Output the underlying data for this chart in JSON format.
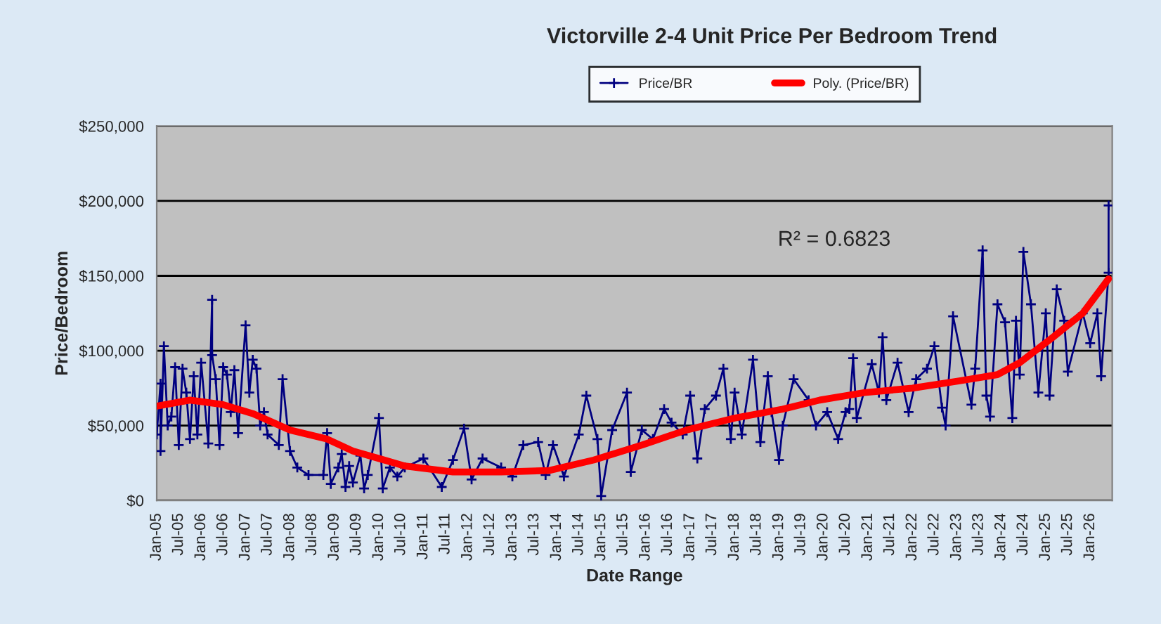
{
  "chart_data": {
    "type": "line",
    "title": "Victorville 2-4 Unit Price Per Bedroom Trend",
    "xlabel": "Date Range",
    "ylabel": "Price/Bedroom",
    "annotations": [
      "R² = 0.6823"
    ],
    "legend": "top",
    "grid": "y",
    "ylim": [
      0,
      250000
    ],
    "yticks": [
      {
        "value": 0,
        "label": "$0"
      },
      {
        "value": 50000,
        "label": "$50,000"
      },
      {
        "value": 100000,
        "label": "$100,000"
      },
      {
        "value": 150000,
        "label": "$150,000"
      },
      {
        "value": 200000,
        "label": "$200,000"
      },
      {
        "value": 250000,
        "label": "$250,000"
      }
    ],
    "xlim": [
      "2005-01",
      "2026-07"
    ],
    "xticks": [
      {
        "value": "2005-01",
        "label": "Jan-05"
      },
      {
        "value": "2005-07",
        "label": "Jul-05"
      },
      {
        "value": "2006-01",
        "label": "Jan-06"
      },
      {
        "value": "2006-07",
        "label": "Jul-06"
      },
      {
        "value": "2007-01",
        "label": "Jan-07"
      },
      {
        "value": "2007-07",
        "label": "Jul-07"
      },
      {
        "value": "2008-01",
        "label": "Jan-08"
      },
      {
        "value": "2008-07",
        "label": "Jul-08"
      },
      {
        "value": "2009-01",
        "label": "Jan-09"
      },
      {
        "value": "2009-07",
        "label": "Jul-09"
      },
      {
        "value": "2010-01",
        "label": "Jan-10"
      },
      {
        "value": "2010-07",
        "label": "Jul-10"
      },
      {
        "value": "2011-01",
        "label": "Jan-11"
      },
      {
        "value": "2011-07",
        "label": "Jul-11"
      },
      {
        "value": "2012-01",
        "label": "Jan-12"
      },
      {
        "value": "2012-07",
        "label": "Jul-12"
      },
      {
        "value": "2013-01",
        "label": "Jan-13"
      },
      {
        "value": "2013-07",
        "label": "Jul-13"
      },
      {
        "value": "2014-01",
        "label": "Jan-14"
      },
      {
        "value": "2014-07",
        "label": "Jul-14"
      },
      {
        "value": "2015-01",
        "label": "Jan-15"
      },
      {
        "value": "2015-07",
        "label": "Jul-15"
      },
      {
        "value": "2016-01",
        "label": "Jan-16"
      },
      {
        "value": "2016-07",
        "label": "Jul-16"
      },
      {
        "value": "2017-01",
        "label": "Jan-17"
      },
      {
        "value": "2017-07",
        "label": "Jul-17"
      },
      {
        "value": "2018-01",
        "label": "Jan-18"
      },
      {
        "value": "2018-07",
        "label": "Jul-18"
      },
      {
        "value": "2019-01",
        "label": "Jan-19"
      },
      {
        "value": "2019-07",
        "label": "Jul-19"
      },
      {
        "value": "2020-01",
        "label": "Jan-20"
      },
      {
        "value": "2020-07",
        "label": "Jul-20"
      },
      {
        "value": "2021-01",
        "label": "Jan-21"
      },
      {
        "value": "2021-07",
        "label": "Jul-21"
      },
      {
        "value": "2022-01",
        "label": "Jan-22"
      },
      {
        "value": "2022-07",
        "label": "Jul-22"
      },
      {
        "value": "2023-01",
        "label": "Jan-23"
      },
      {
        "value": "2023-07",
        "label": "Jul-23"
      },
      {
        "value": "2024-01",
        "label": "Jan-24"
      },
      {
        "value": "2024-07",
        "label": "Jul-24"
      },
      {
        "value": "2025-01",
        "label": "Jan-25"
      },
      {
        "value": "2025-07",
        "label": "Jul-25"
      },
      {
        "value": "2026-01",
        "label": "Jan-26"
      }
    ],
    "series": [
      {
        "name": "Price/BR",
        "color": "#000080",
        "marker": "cross",
        "x": [
          "2005-01",
          "2005-02",
          "2005-02",
          "2005-03",
          "2005-04",
          "2005-05",
          "2005-06",
          "2005-07",
          "2005-08",
          "2005-09",
          "2005-10",
          "2005-11",
          "2005-12",
          "2006-01",
          "2006-03",
          "2006-04",
          "2006-04",
          "2006-05",
          "2006-06",
          "2006-07",
          "2006-08",
          "2006-09",
          "2006-10",
          "2006-11",
          "2007-01",
          "2007-02",
          "2007-03",
          "2007-04",
          "2007-05",
          "2007-06",
          "2007-07",
          "2007-10",
          "2007-11",
          "2008-01",
          "2008-03",
          "2008-06",
          "2008-10",
          "2008-11",
          "2008-12",
          "2009-02",
          "2009-03",
          "2009-04",
          "2009-05",
          "2009-06",
          "2009-08",
          "2009-09",
          "2009-10",
          "2010-01",
          "2010-02",
          "2010-04",
          "2010-06",
          "2010-08",
          "2011-01",
          "2011-06",
          "2011-09",
          "2011-12",
          "2012-02",
          "2012-05",
          "2012-10",
          "2013-01",
          "2013-04",
          "2013-08",
          "2013-10",
          "2013-12",
          "2014-03",
          "2014-07",
          "2014-09",
          "2014-12",
          "2015-01",
          "2015-04",
          "2015-08",
          "2015-09",
          "2015-12",
          "2016-03",
          "2016-06",
          "2016-08",
          "2016-11",
          "2017-01",
          "2017-03",
          "2017-05",
          "2017-08",
          "2017-10",
          "2017-12",
          "2018-01",
          "2018-03",
          "2018-06",
          "2018-08",
          "2018-10",
          "2018-11",
          "2019-01",
          "2019-02",
          "2019-05",
          "2019-09",
          "2019-11",
          "2020-02",
          "2020-05",
          "2020-07",
          "2020-08",
          "2020-09",
          "2020-10",
          "2021-02",
          "2021-04",
          "2021-05",
          "2021-06",
          "2021-09",
          "2021-12",
          "2022-02",
          "2022-05",
          "2022-07",
          "2022-09",
          "2022-10",
          "2022-12",
          "2023-05",
          "2023-06",
          "2023-08",
          "2023-09",
          "2023-10",
          "2023-12",
          "2024-02",
          "2024-04",
          "2024-05",
          "2024-06",
          "2024-07",
          "2024-09",
          "2024-11",
          "2025-01",
          "2025-02",
          "2025-04",
          "2025-06",
          "2025-07",
          "2025-11",
          "2026-01",
          "2026-03",
          "2026-04",
          "2026-06",
          "2026-06"
        ],
        "values": [
          44000,
          78000,
          33000,
          103000,
          50000,
          56000,
          89000,
          37000,
          88000,
          72000,
          41000,
          83000,
          44000,
          92000,
          38000,
          134000,
          97000,
          81000,
          37000,
          89000,
          84000,
          59000,
          87000,
          45000,
          117000,
          72000,
          94000,
          88000,
          50000,
          59000,
          44000,
          37000,
          81000,
          33000,
          22000,
          17000,
          17000,
          45000,
          11000,
          22000,
          31000,
          9000,
          23000,
          12000,
          30000,
          8000,
          17000,
          55000,
          8000,
          22000,
          16000,
          22000,
          28000,
          9000,
          27000,
          48000,
          14000,
          28000,
          22000,
          16000,
          37000,
          39000,
          17000,
          37000,
          16000,
          44000,
          70000,
          41000,
          3000,
          47000,
          72000,
          19000,
          47000,
          41000,
          61000,
          52000,
          44000,
          70000,
          28000,
          61000,
          70000,
          88000,
          41000,
          72000,
          44000,
          94000,
          39000,
          83000,
          59000,
          27000,
          50000,
          81000,
          67000,
          50000,
          59000,
          41000,
          59000,
          61000,
          95000,
          55000,
          91000,
          72000,
          109000,
          67000,
          92000,
          59000,
          81000,
          88000,
          103000,
          62000,
          50000,
          123000,
          64000,
          88000,
          167000,
          70000,
          56000,
          131000,
          119000,
          55000,
          120000,
          84000,
          166000,
          131000,
          72000,
          125000,
          70000,
          141000,
          120000,
          86000,
          125000,
          105000,
          125000,
          83000,
          152000,
          197000
        ]
      },
      {
        "name": "Poly. (Price/BR)",
        "color": "#ff0000",
        "marker": "none",
        "x": [
          "2005-01",
          "2005-10",
          "2006-07",
          "2007-03",
          "2008-01",
          "2008-11",
          "2009-06",
          "2010-01",
          "2010-08",
          "2011-09",
          "2012-10",
          "2013-11",
          "2014-11",
          "2015-12",
          "2016-12",
          "2018-01",
          "2019-02",
          "2019-12",
          "2020-12",
          "2022-01",
          "2023-02",
          "2023-12",
          "2024-06",
          "2025-03",
          "2025-11",
          "2026-06"
        ],
        "values": [
          63000,
          67000,
          64000,
          58000,
          47000,
          41000,
          33000,
          28000,
          23000,
          19000,
          19000,
          20000,
          27000,
          37000,
          47000,
          55000,
          61000,
          67000,
          72000,
          75000,
          80000,
          84000,
          92000,
          109000,
          125000,
          148000
        ]
      }
    ]
  }
}
